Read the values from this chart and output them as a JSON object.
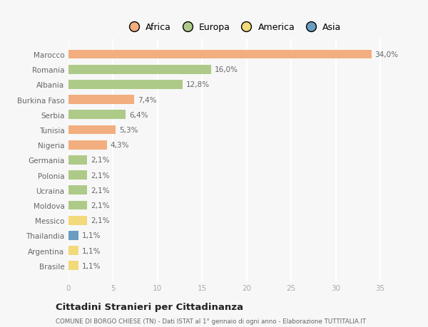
{
  "countries": [
    "Marocco",
    "Romania",
    "Albania",
    "Burkina Faso",
    "Serbia",
    "Tunisia",
    "Nigeria",
    "Germania",
    "Polonia",
    "Ucraina",
    "Moldova",
    "Messico",
    "Thailandia",
    "Argentina",
    "Brasile"
  ],
  "values": [
    34.0,
    16.0,
    12.8,
    7.4,
    6.4,
    5.3,
    4.3,
    2.1,
    2.1,
    2.1,
    2.1,
    2.1,
    1.1,
    1.1,
    1.1
  ],
  "labels": [
    "34,0%",
    "16,0%",
    "12,8%",
    "7,4%",
    "6,4%",
    "5,3%",
    "4,3%",
    "2,1%",
    "2,1%",
    "2,1%",
    "2,1%",
    "2,1%",
    "1,1%",
    "1,1%",
    "1,1%"
  ],
  "continents": [
    "Africa",
    "Europa",
    "Europa",
    "Africa",
    "Europa",
    "Africa",
    "Africa",
    "Europa",
    "Europa",
    "Europa",
    "Europa",
    "America",
    "Asia",
    "America",
    "America"
  ],
  "colors": {
    "Africa": "#F2AE7E",
    "Europa": "#AECA88",
    "America": "#F2D97A",
    "Asia": "#6B9DC2"
  },
  "xlim": [
    0,
    37
  ],
  "xticks": [
    0,
    5,
    10,
    15,
    20,
    25,
    30,
    35
  ],
  "background_color": "#f7f7f7",
  "title": "Cittadini Stranieri per Cittadinanza",
  "subtitle": "COMUNE DI BORGO CHIESE (TN) - Dati ISTAT al 1° gennaio di ogni anno - Elaborazione TUTTITALIA.IT",
  "bar_height": 0.6,
  "legend_order": [
    "Africa",
    "Europa",
    "America",
    "Asia"
  ]
}
